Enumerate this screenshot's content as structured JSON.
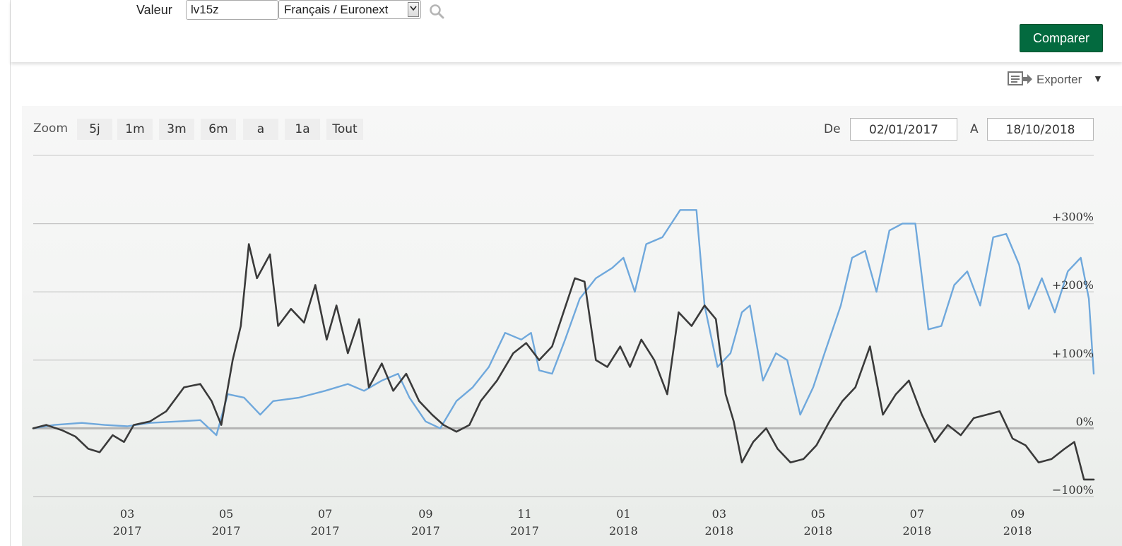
{
  "form": {
    "label_valeur": "Valeur",
    "valeur_value": "lv15z",
    "market_selected": "Français / Euronext",
    "search_icon": "search-icon",
    "compare_label": "Comparer"
  },
  "export": {
    "label": "Exporter",
    "icon": "export-icon",
    "caret": "▼"
  },
  "zoom": {
    "label": "Zoom",
    "buttons": [
      "5j",
      "1m",
      "3m",
      "6m",
      "a",
      "1a",
      "Tout"
    ]
  },
  "range": {
    "from_label": "De",
    "from_value": "02/01/2017",
    "to_label": "A",
    "to_value": "18/10/2018"
  },
  "colors": {
    "accent_green": "#036a3f",
    "series_dark": "#3a3a3a",
    "series_blue": "#6fa8dc"
  },
  "chart_data": {
    "type": "line",
    "title": "",
    "xlabel": "",
    "ylabel": "",
    "y_unit": "%",
    "ylim": [
      -100,
      400
    ],
    "xlim": [
      "2017-01-02",
      "2018-10-18"
    ],
    "grid": true,
    "legend": "none",
    "y_ticks": [
      {
        "value": 300,
        "label": "+300%"
      },
      {
        "value": 200,
        "label": "+200%"
      },
      {
        "value": 100,
        "label": "+100%"
      },
      {
        "value": 0,
        "label": "0%"
      },
      {
        "value": -100,
        "label": "−100%"
      }
    ],
    "x_ticks": [
      {
        "date": "2017-03-01",
        "month": "03",
        "year": "2017"
      },
      {
        "date": "2017-05-01",
        "month": "05",
        "year": "2017"
      },
      {
        "date": "2017-07-01",
        "month": "07",
        "year": "2017"
      },
      {
        "date": "2017-09-01",
        "month": "09",
        "year": "2017"
      },
      {
        "date": "2017-11-01",
        "month": "11",
        "year": "2017"
      },
      {
        "date": "2018-01-01",
        "month": "01",
        "year": "2018"
      },
      {
        "date": "2018-03-01",
        "month": "03",
        "year": "2018"
      },
      {
        "date": "2018-05-01",
        "month": "05",
        "year": "2018"
      },
      {
        "date": "2018-07-01",
        "month": "07",
        "year": "2018"
      },
      {
        "date": "2018-09-01",
        "month": "09",
        "year": "2018"
      }
    ],
    "series": [
      {
        "color": "#3a3a3a",
        "points": [
          [
            "2017-01-02",
            0
          ],
          [
            "2017-01-10",
            5
          ],
          [
            "2017-01-20",
            -3
          ],
          [
            "2017-01-28",
            -12
          ],
          [
            "2017-02-05",
            -30
          ],
          [
            "2017-02-12",
            -35
          ],
          [
            "2017-02-20",
            -10
          ],
          [
            "2017-02-27",
            -20
          ],
          [
            "2017-03-05",
            5
          ],
          [
            "2017-03-15",
            10
          ],
          [
            "2017-03-25",
            25
          ],
          [
            "2017-04-05",
            60
          ],
          [
            "2017-04-15",
            65
          ],
          [
            "2017-04-22",
            40
          ],
          [
            "2017-04-28",
            5
          ],
          [
            "2017-05-05",
            100
          ],
          [
            "2017-05-10",
            150
          ],
          [
            "2017-05-15",
            270
          ],
          [
            "2017-05-20",
            220
          ],
          [
            "2017-05-28",
            255
          ],
          [
            "2017-06-02",
            150
          ],
          [
            "2017-06-10",
            175
          ],
          [
            "2017-06-18",
            155
          ],
          [
            "2017-06-25",
            210
          ],
          [
            "2017-07-02",
            130
          ],
          [
            "2017-07-08",
            180
          ],
          [
            "2017-07-15",
            110
          ],
          [
            "2017-07-22",
            160
          ],
          [
            "2017-07-28",
            60
          ],
          [
            "2017-08-05",
            95
          ],
          [
            "2017-08-12",
            55
          ],
          [
            "2017-08-20",
            80
          ],
          [
            "2017-08-28",
            40
          ],
          [
            "2017-09-05",
            20
          ],
          [
            "2017-09-12",
            5
          ],
          [
            "2017-09-20",
            -5
          ],
          [
            "2017-09-28",
            5
          ],
          [
            "2017-10-05",
            40
          ],
          [
            "2017-10-15",
            70
          ],
          [
            "2017-10-25",
            110
          ],
          [
            "2017-11-02",
            125
          ],
          [
            "2017-11-10",
            100
          ],
          [
            "2017-11-18",
            120
          ],
          [
            "2017-11-25",
            170
          ],
          [
            "2017-12-02",
            220
          ],
          [
            "2017-12-08",
            215
          ],
          [
            "2017-12-15",
            100
          ],
          [
            "2017-12-22",
            90
          ],
          [
            "2017-12-30",
            120
          ],
          [
            "2018-01-05",
            90
          ],
          [
            "2018-01-12",
            130
          ],
          [
            "2018-01-20",
            100
          ],
          [
            "2018-01-28",
            50
          ],
          [
            "2018-02-04",
            170
          ],
          [
            "2018-02-12",
            150
          ],
          [
            "2018-02-20",
            180
          ],
          [
            "2018-02-27",
            160
          ],
          [
            "2018-03-05",
            50
          ],
          [
            "2018-03-10",
            10
          ],
          [
            "2018-03-15",
            -50
          ],
          [
            "2018-03-22",
            -20
          ],
          [
            "2018-03-30",
            0
          ],
          [
            "2018-04-06",
            -30
          ],
          [
            "2018-04-14",
            -50
          ],
          [
            "2018-04-22",
            -45
          ],
          [
            "2018-04-30",
            -25
          ],
          [
            "2018-05-08",
            10
          ],
          [
            "2018-05-16",
            40
          ],
          [
            "2018-05-24",
            60
          ],
          [
            "2018-06-02",
            120
          ],
          [
            "2018-06-10",
            20
          ],
          [
            "2018-06-18",
            50
          ],
          [
            "2018-06-26",
            70
          ],
          [
            "2018-07-04",
            20
          ],
          [
            "2018-07-12",
            -20
          ],
          [
            "2018-07-20",
            5
          ],
          [
            "2018-07-28",
            -10
          ],
          [
            "2018-08-05",
            15
          ],
          [
            "2018-08-13",
            20
          ],
          [
            "2018-08-21",
            25
          ],
          [
            "2018-08-29",
            -15
          ],
          [
            "2018-09-06",
            -25
          ],
          [
            "2018-09-14",
            -50
          ],
          [
            "2018-09-22",
            -45
          ],
          [
            "2018-09-30",
            -30
          ],
          [
            "2018-10-06",
            -20
          ],
          [
            "2018-10-12",
            -75
          ],
          [
            "2018-10-18",
            -75
          ]
        ]
      },
      {
        "color": "#6fa8dc",
        "points": [
          [
            "2017-01-02",
            0
          ],
          [
            "2017-01-15",
            5
          ],
          [
            "2017-02-01",
            8
          ],
          [
            "2017-02-15",
            5
          ],
          [
            "2017-03-01",
            3
          ],
          [
            "2017-03-15",
            8
          ],
          [
            "2017-04-01",
            10
          ],
          [
            "2017-04-15",
            12
          ],
          [
            "2017-04-25",
            -10
          ],
          [
            "2017-05-02",
            50
          ],
          [
            "2017-05-12",
            45
          ],
          [
            "2017-05-22",
            20
          ],
          [
            "2017-05-30",
            40
          ],
          [
            "2017-06-15",
            45
          ],
          [
            "2017-07-01",
            55
          ],
          [
            "2017-07-15",
            65
          ],
          [
            "2017-07-25",
            55
          ],
          [
            "2017-08-05",
            70
          ],
          [
            "2017-08-15",
            80
          ],
          [
            "2017-08-22",
            45
          ],
          [
            "2017-09-01",
            10
          ],
          [
            "2017-09-10",
            0
          ],
          [
            "2017-09-20",
            40
          ],
          [
            "2017-09-30",
            60
          ],
          [
            "2017-10-10",
            90
          ],
          [
            "2017-10-20",
            140
          ],
          [
            "2017-10-30",
            130
          ],
          [
            "2017-11-05",
            140
          ],
          [
            "2017-11-10",
            85
          ],
          [
            "2017-11-18",
            80
          ],
          [
            "2017-11-26",
            130
          ],
          [
            "2017-12-05",
            190
          ],
          [
            "2017-12-15",
            220
          ],
          [
            "2017-12-25",
            235
          ],
          [
            "2018-01-01",
            250
          ],
          [
            "2018-01-08",
            200
          ],
          [
            "2018-01-15",
            270
          ],
          [
            "2018-01-25",
            280
          ],
          [
            "2018-02-05",
            320
          ],
          [
            "2018-02-15",
            320
          ],
          [
            "2018-02-20",
            180
          ],
          [
            "2018-02-28",
            90
          ],
          [
            "2018-03-08",
            110
          ],
          [
            "2018-03-15",
            170
          ],
          [
            "2018-03-20",
            180
          ],
          [
            "2018-03-28",
            70
          ],
          [
            "2018-04-05",
            110
          ],
          [
            "2018-04-12",
            100
          ],
          [
            "2018-04-20",
            20
          ],
          [
            "2018-04-28",
            60
          ],
          [
            "2018-05-05",
            110
          ],
          [
            "2018-05-15",
            180
          ],
          [
            "2018-05-22",
            250
          ],
          [
            "2018-05-30",
            260
          ],
          [
            "2018-06-06",
            200
          ],
          [
            "2018-06-14",
            290
          ],
          [
            "2018-06-22",
            300
          ],
          [
            "2018-06-30",
            300
          ],
          [
            "2018-07-08",
            145
          ],
          [
            "2018-07-16",
            150
          ],
          [
            "2018-07-24",
            210
          ],
          [
            "2018-08-01",
            230
          ],
          [
            "2018-08-09",
            180
          ],
          [
            "2018-08-17",
            280
          ],
          [
            "2018-08-25",
            285
          ],
          [
            "2018-09-02",
            240
          ],
          [
            "2018-09-08",
            175
          ],
          [
            "2018-09-16",
            220
          ],
          [
            "2018-09-24",
            170
          ],
          [
            "2018-10-02",
            230
          ],
          [
            "2018-10-10",
            250
          ],
          [
            "2018-10-15",
            190
          ],
          [
            "2018-10-18",
            80
          ]
        ]
      }
    ]
  }
}
